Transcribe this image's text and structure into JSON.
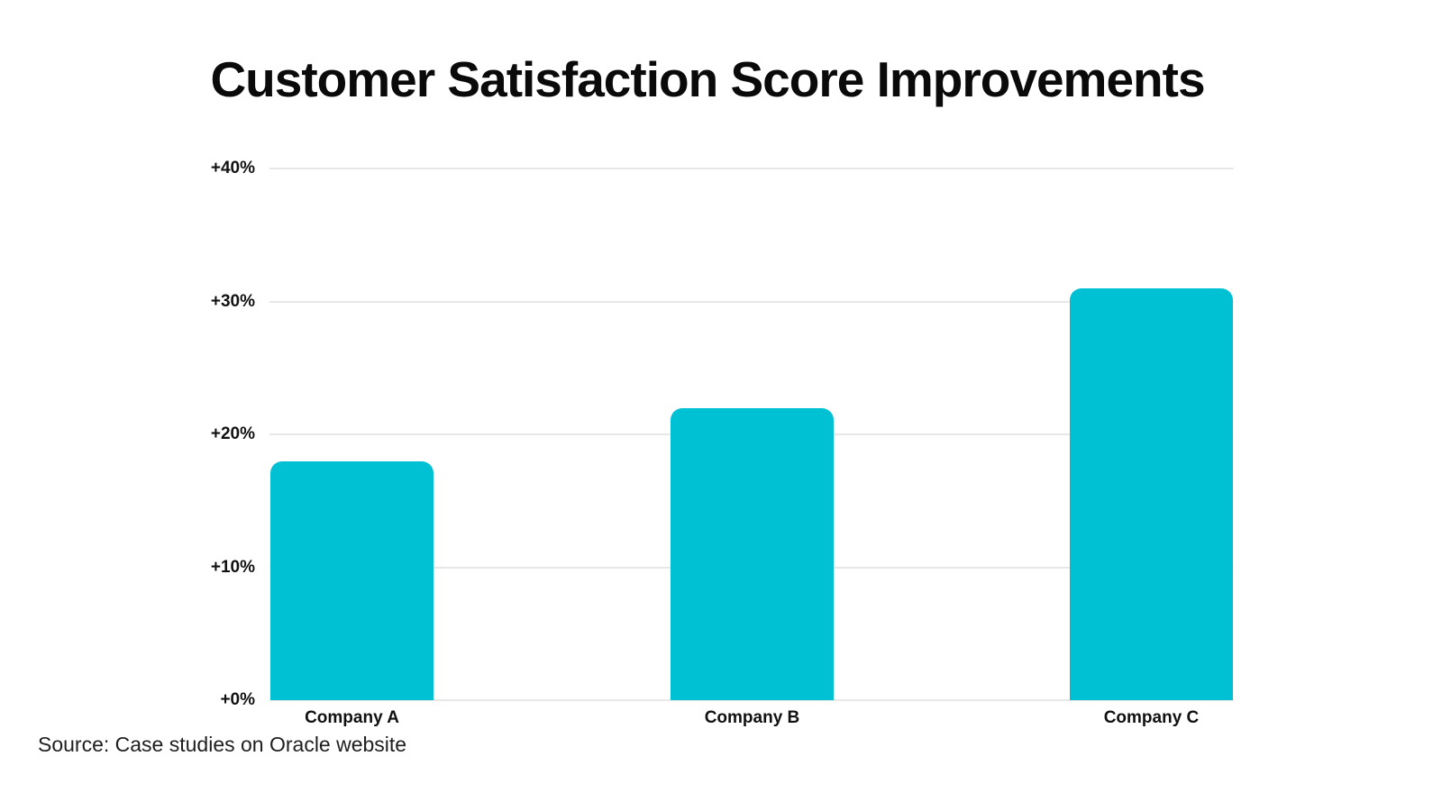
{
  "title": "Customer Satisfaction Score Improvements",
  "source_note": "Source: Case studies on Oracle website",
  "chart_data": {
    "type": "bar",
    "title": "Customer Satisfaction Score Improvements",
    "categories": [
      "Company A",
      "Company B",
      "Company C"
    ],
    "values": [
      18,
      22,
      31
    ],
    "value_format": "+{v}%",
    "xlabel": "",
    "ylabel": "",
    "ylim": [
      0,
      40
    ],
    "yticks": [
      {
        "value": 0,
        "label": "+0%"
      },
      {
        "value": 10,
        "label": "+10%"
      },
      {
        "value": 20,
        "label": "+20%"
      },
      {
        "value": 30,
        "label": "+30%"
      },
      {
        "value": 40,
        "label": "+40%"
      }
    ],
    "grid": "horizontal",
    "legend": "none",
    "colors": {
      "bar": "#00C0D4",
      "gridline": "#E8E8E8",
      "tick_label": "#111111",
      "title": "#0A0A0A",
      "source": "#1F1F1F",
      "background": "#FFFFFF"
    }
  }
}
